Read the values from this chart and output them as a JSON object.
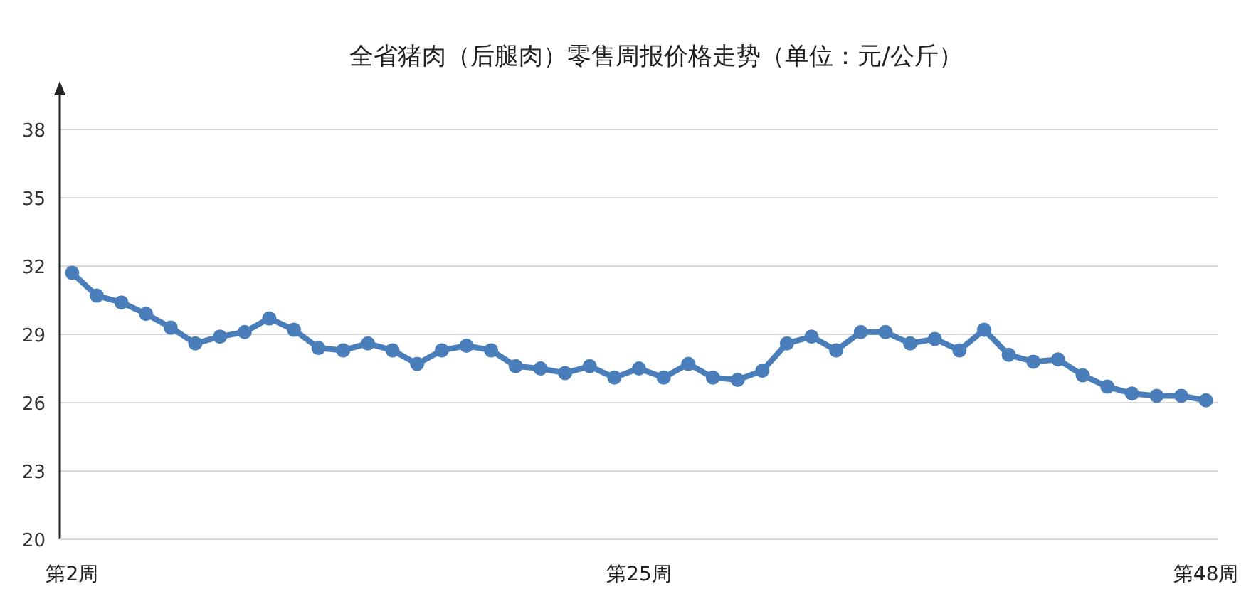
{
  "chart_data": {
    "type": "line",
    "title": "全省猪肉（后腿肉）零售周报价格走势（单位：元/公斤）",
    "categories": [
      "第2周",
      null,
      null,
      null,
      null,
      null,
      null,
      null,
      null,
      null,
      null,
      null,
      null,
      null,
      null,
      null,
      null,
      null,
      null,
      null,
      null,
      null,
      null,
      "第25周",
      null,
      null,
      null,
      null,
      null,
      null,
      null,
      null,
      null,
      null,
      null,
      null,
      null,
      null,
      null,
      null,
      null,
      null,
      null,
      null,
      null,
      null,
      "第48周"
    ],
    "series": [
      {
        "color": "#4a7ebb",
        "values": [
          31.7,
          30.7,
          30.4,
          29.9,
          29.3,
          28.6,
          28.9,
          29.1,
          29.7,
          29.2,
          28.4,
          28.3,
          28.6,
          28.3,
          27.7,
          28.3,
          28.5,
          28.3,
          27.6,
          27.5,
          27.3,
          27.6,
          27.1,
          27.5,
          27.1,
          27.7,
          27.1,
          27.0,
          27.4,
          28.6,
          28.9,
          28.3,
          29.1,
          29.1,
          28.6,
          28.8,
          28.3,
          29.2,
          28.1,
          27.8,
          27.9,
          27.2,
          26.7,
          26.4,
          26.3,
          26.3,
          26.1
        ]
      }
    ],
    "ylim": [
      20,
      40
    ],
    "yticks": [
      20,
      23,
      26,
      29,
      32,
      35,
      38
    ],
    "grid": "y",
    "marker": "circle",
    "line_style": "solid"
  }
}
